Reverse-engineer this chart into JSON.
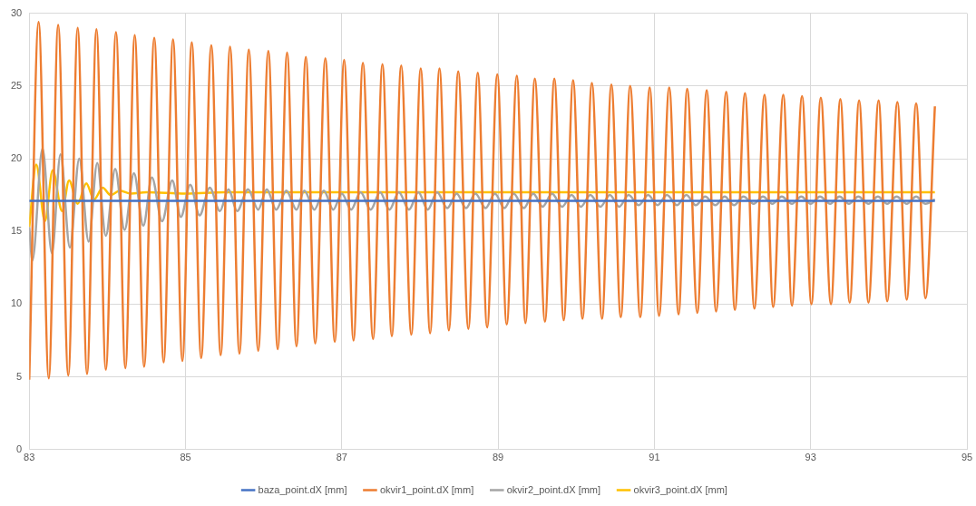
{
  "chart_data": {
    "type": "line",
    "xlim": [
      83,
      95
    ],
    "xticks": [
      83,
      85,
      87,
      89,
      91,
      93,
      95
    ],
    "ylim": [
      0,
      30
    ],
    "yticks": [
      0,
      5,
      10,
      15,
      20,
      25,
      30
    ],
    "grid": true,
    "legend": "bottom",
    "marker": "none",
    "series": [
      {
        "name": "baza_point.dX [mm]",
        "color": "#4472c4",
        "x": [
          83.0,
          85.0,
          87.0,
          89.0,
          91.0,
          93.0,
          94.59
        ],
        "values": [
          17.1,
          17.1,
          17.1,
          17.1,
          17.1,
          17.1,
          17.1
        ]
      },
      {
        "name": "okvir1_point.dX [mm]",
        "color": "#ed7d31",
        "x": [
          83.0,
          83.12,
          83.25,
          83.37,
          83.5,
          83.62,
          83.74,
          83.86,
          83.98,
          84.11,
          84.23,
          84.35,
          84.47,
          84.6,
          84.72,
          84.84,
          84.96,
          85.08,
          85.2,
          85.33,
          85.45,
          85.57,
          85.69,
          85.81,
          85.93,
          86.06,
          86.18,
          86.3,
          86.42,
          86.54,
          86.66,
          86.79,
          86.91,
          87.03,
          87.15,
          87.27,
          87.4,
          87.52,
          87.64,
          87.76,
          87.89,
          88.01,
          88.13,
          88.25,
          88.37,
          88.49,
          88.62,
          88.74,
          88.86,
          88.99,
          89.11,
          89.24,
          89.35,
          89.47,
          89.6,
          89.72,
          89.84,
          89.96,
          90.08,
          90.2,
          90.33,
          90.45,
          90.57,
          90.69,
          90.82,
          90.94,
          91.06,
          91.19,
          91.31,
          91.42,
          91.55,
          91.67,
          91.79,
          91.92,
          92.03,
          92.16,
          92.28,
          92.41,
          92.52,
          92.65,
          92.76,
          92.89,
          93.01,
          93.13,
          93.26,
          93.38,
          93.5,
          93.62,
          93.74,
          93.87,
          93.98,
          94.11,
          94.23,
          94.35,
          94.47,
          94.59
        ],
        "values": [
          4.8,
          29.4,
          4.9,
          29.2,
          5.1,
          29.0,
          5.2,
          28.9,
          5.5,
          28.7,
          5.6,
          28.5,
          5.7,
          28.3,
          6.0,
          28.2,
          6.1,
          28.0,
          6.3,
          27.8,
          6.5,
          27.7,
          6.6,
          27.5,
          6.8,
          27.4,
          6.9,
          27.3,
          7.1,
          27.0,
          7.3,
          26.9,
          7.4,
          26.8,
          7.5,
          26.6,
          7.6,
          26.5,
          7.8,
          26.4,
          7.9,
          26.2,
          8.0,
          26.2,
          8.2,
          26.0,
          8.3,
          25.9,
          8.4,
          25.8,
          8.6,
          25.7,
          8.7,
          25.5,
          8.8,
          25.5,
          8.9,
          25.4,
          9.0,
          25.2,
          9.0,
          25.1,
          9.1,
          25.0,
          9.1,
          24.9,
          9.2,
          24.9,
          9.3,
          24.8,
          9.4,
          24.7,
          9.5,
          24.6,
          9.6,
          24.5,
          9.7,
          24.4,
          9.8,
          24.4,
          9.9,
          24.3,
          10.0,
          24.2,
          10.0,
          24.1,
          10.1,
          24.0,
          10.1,
          24.0,
          10.2,
          23.9,
          10.3,
          23.8,
          10.4,
          23.6
        ]
      },
      {
        "name": "okvir2_point.dX [mm]",
        "color": "#a5a5a5",
        "x": [
          83.0,
          83.04,
          83.17,
          83.29,
          83.4,
          83.52,
          83.64,
          83.76,
          83.87,
          83.98,
          84.1,
          84.22,
          84.34,
          84.46,
          84.57,
          84.7,
          84.83,
          84.94,
          85.06,
          85.18,
          85.31,
          85.44,
          85.55,
          85.66,
          85.8,
          85.93,
          86.04,
          86.16,
          86.29,
          86.42,
          86.52,
          86.65,
          86.77,
          86.89,
          87.0,
          87.12,
          87.24,
          87.37,
          87.49,
          87.61,
          87.73,
          87.86,
          87.98,
          88.1,
          88.22,
          88.35,
          88.47,
          88.59,
          88.71,
          88.84,
          88.96,
          89.08,
          89.2,
          89.33,
          89.45,
          89.57,
          89.69,
          89.82,
          89.94,
          90.06,
          90.18,
          90.31,
          90.43,
          90.55,
          90.67,
          90.8,
          90.92,
          91.04,
          91.16,
          91.29,
          91.41,
          91.53,
          91.65,
          91.78,
          91.9,
          92.02,
          92.14,
          92.27,
          92.39,
          92.51,
          92.63,
          92.76,
          92.88,
          93.0,
          93.12,
          93.25,
          93.37,
          93.49,
          93.61,
          93.74,
          93.86,
          93.98,
          94.1,
          94.23,
          94.35,
          94.47,
          94.59
        ],
        "values": [
          15.3,
          13.0,
          20.7,
          13.5,
          20.3,
          13.9,
          20.0,
          14.3,
          19.7,
          14.7,
          19.3,
          15.1,
          19.0,
          15.4,
          18.7,
          15.7,
          18.5,
          16.0,
          18.2,
          16.1,
          18.0,
          16.4,
          17.9,
          16.4,
          17.9,
          16.5,
          17.9,
          16.5,
          17.8,
          16.5,
          17.8,
          16.5,
          17.8,
          16.5,
          17.6,
          16.5,
          17.7,
          16.5,
          17.7,
          16.5,
          17.7,
          16.5,
          17.7,
          16.5,
          17.7,
          16.6,
          17.6,
          16.6,
          17.6,
          16.6,
          17.6,
          16.6,
          17.6,
          16.6,
          17.6,
          16.7,
          17.6,
          16.7,
          17.5,
          16.7,
          17.5,
          16.7,
          17.5,
          16.7,
          17.5,
          16.8,
          17.5,
          16.8,
          17.5,
          16.8,
          17.5,
          16.8,
          17.4,
          16.8,
          17.4,
          16.8,
          17.4,
          16.9,
          17.4,
          16.9,
          17.4,
          16.9,
          17.4,
          16.9,
          17.4,
          16.9,
          17.4,
          16.9,
          17.4,
          16.9,
          17.4,
          16.9,
          17.4,
          16.9,
          17.4,
          16.9,
          17.2
        ]
      },
      {
        "name": "okvir3_point.dX [mm]",
        "color": "#ffc000",
        "x": [
          83.0,
          83.09,
          83.2,
          83.3,
          83.42,
          83.51,
          83.62,
          83.73,
          83.83,
          83.94,
          84.04,
          84.16,
          84.3,
          84.5,
          85.0,
          85.5,
          86.0,
          87.0,
          88.0,
          89.0,
          90.0,
          91.0,
          92.0,
          93.0,
          94.0,
          94.59
        ],
        "values": [
          15.3,
          19.6,
          15.7,
          19.2,
          16.4,
          18.5,
          16.9,
          18.3,
          17.2,
          18.0,
          17.5,
          17.8,
          17.6,
          17.7,
          17.6,
          17.7,
          17.7,
          17.7,
          17.7,
          17.7,
          17.7,
          17.7,
          17.7,
          17.7,
          17.7,
          17.7
        ]
      }
    ]
  }
}
